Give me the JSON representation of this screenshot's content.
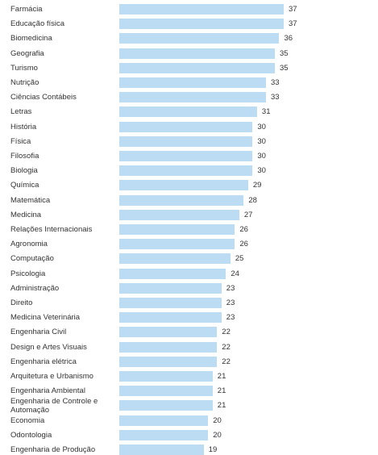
{
  "chart_data": {
    "type": "bar",
    "orientation": "horizontal",
    "title": "",
    "xlabel": "",
    "ylabel": "",
    "xlim": [
      0,
      37
    ],
    "grid": false,
    "legend": "none",
    "bar_color": "#bcdcf4",
    "categories": [
      "Farmácia",
      "Educação física",
      "Biomedicina",
      "Geografia",
      "Turismo",
      "Nutrição",
      "Ciências Contábeis",
      "Letras",
      "História",
      "Física",
      "Filosofia",
      "Biologia",
      "Química",
      "Matemática",
      "Medicina",
      "Relações Internacionais",
      "Agronomia",
      "Computação",
      "Psicologia",
      "Administração",
      "Direito",
      "Medicina Veterinária",
      "Engenharia Civil",
      "Design e Artes Visuais",
      "Engenharia elétrica",
      "Arquitetura e Urbanismo",
      "Engenharia Ambiental",
      "Engenharia de Controle e Automação",
      "Economia",
      "Odontologia",
      "Engenharia de Produção"
    ],
    "values": [
      37,
      37,
      36,
      35,
      35,
      33,
      33,
      31,
      30,
      30,
      30,
      30,
      29,
      28,
      27,
      26,
      26,
      25,
      24,
      23,
      23,
      23,
      22,
      22,
      22,
      21,
      21,
      21,
      20,
      20,
      19
    ]
  }
}
